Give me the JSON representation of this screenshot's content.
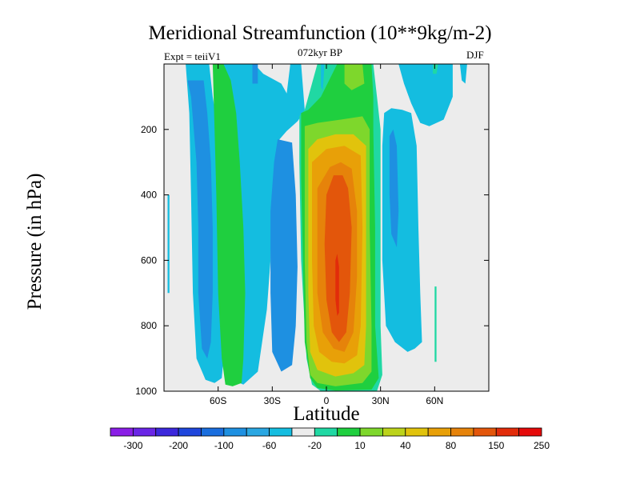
{
  "chart_data": {
    "type": "heatmap",
    "title": "Meridional Streamfunction (10**9kg/m-2)",
    "subtitle_left": "Expt = teiiV1",
    "subtitle_center": "072kyr BP",
    "subtitle_right": "DJF",
    "xlabel": "Latitude",
    "ylabel": "Pressure (in hPa)",
    "xlim": [
      -90,
      90
    ],
    "ylim": [
      1000,
      0
    ],
    "x_ticks": [
      {
        "value": -60,
        "label": "60S"
      },
      {
        "value": -30,
        "label": "30S"
      },
      {
        "value": 0,
        "label": "0"
      },
      {
        "value": 30,
        "label": "30N"
      },
      {
        "value": 60,
        "label": "60N"
      }
    ],
    "y_ticks": [
      {
        "value": 200,
        "label": "200"
      },
      {
        "value": 400,
        "label": "400"
      },
      {
        "value": 600,
        "label": "600"
      },
      {
        "value": 800,
        "label": "800"
      },
      {
        "value": 1000,
        "label": "1000"
      }
    ],
    "colorbar_labels": [
      "-300",
      "-200",
      "-100",
      "-60",
      "-20",
      "10",
      "40",
      "80",
      "150",
      "250"
    ],
    "colorbar_colors": [
      "#8a1ee6",
      "#6a25e6",
      "#3c28dc",
      "#1f46dc",
      "#1a6ede",
      "#1e90e1",
      "#2aa7e2",
      "#14bde0",
      "#ececec",
      "#20d8a3",
      "#1fcf3f",
      "#7ed72c",
      "#bcd31b",
      "#e1c30c",
      "#e8a008",
      "#e6830a",
      "#e3560b",
      "#e22c0a",
      "#e50a0a"
    ],
    "background_color": "#ececec",
    "regions": [
      {
        "level": -20,
        "color": "#14bde0",
        "shape": "band",
        "pts": [
          [
            -78,
            0
          ],
          [
            -65,
            0
          ],
          [
            -63,
            100
          ],
          [
            -60,
            200
          ],
          [
            -58,
            400
          ],
          [
            -57,
            700
          ],
          [
            -57,
            900
          ],
          [
            -58,
            960
          ],
          [
            -62,
            975
          ],
          [
            -67,
            965
          ],
          [
            -72,
            900
          ],
          [
            -74,
            700
          ],
          [
            -75,
            400
          ],
          [
            -76,
            150
          ]
        ]
      },
      {
        "level": -20,
        "color": "#14bde0",
        "shape": "band",
        "pts": [
          [
            -60,
            0
          ],
          [
            -40,
            0
          ],
          [
            -35,
            30
          ],
          [
            -25,
            60
          ],
          [
            -22,
            90
          ],
          [
            -20,
            0
          ],
          [
            -14,
            0
          ],
          [
            -12,
            140
          ],
          [
            -14,
            160
          ],
          [
            -16,
            175
          ],
          [
            -22,
            205
          ],
          [
            -26,
            230
          ],
          [
            -28,
            280
          ],
          [
            -30,
            400
          ],
          [
            -31,
            600
          ],
          [
            -33,
            750
          ],
          [
            -38,
            940
          ],
          [
            -46,
            980
          ],
          [
            -50,
            970
          ],
          [
            -53,
            900
          ],
          [
            -55,
            700
          ],
          [
            -56,
            400
          ],
          [
            -58,
            200
          ]
        ]
      },
      {
        "level": -60,
        "color": "#1e90e1",
        "shape": "band",
        "pts": [
          [
            -77,
            50
          ],
          [
            -75,
            100
          ],
          [
            -72,
            300
          ],
          [
            -71,
            500
          ],
          [
            -71,
            700
          ],
          [
            -69,
            870
          ],
          [
            -66,
            900
          ],
          [
            -64,
            850
          ],
          [
            -63,
            700
          ],
          [
            -63,
            500
          ],
          [
            -64,
            300
          ],
          [
            -66,
            150
          ],
          [
            -68,
            50
          ]
        ]
      },
      {
        "level": -60,
        "color": "#1e90e1",
        "shape": "band",
        "pts": [
          [
            -57,
            150
          ],
          [
            -50,
            150
          ],
          [
            -49,
            400
          ],
          [
            -50,
            700
          ],
          [
            -52,
            760
          ],
          [
            -55,
            700
          ],
          [
            -56,
            400
          ]
        ]
      },
      {
        "level": -60,
        "color": "#1e90e1",
        "shape": "band",
        "pts": [
          [
            -41,
            0
          ],
          [
            -38,
            0
          ],
          [
            -38,
            60
          ],
          [
            -41,
            60
          ]
        ]
      },
      {
        "level": -60,
        "color": "#1e90e1",
        "shape": "band",
        "pts": [
          [
            -27,
            230
          ],
          [
            -19,
            240
          ],
          [
            -17,
            400
          ],
          [
            -16,
            620
          ],
          [
            -17,
            800
          ],
          [
            -19,
            920
          ],
          [
            -25,
            940
          ],
          [
            -30,
            880
          ],
          [
            -31,
            700
          ],
          [
            -31,
            450
          ],
          [
            -29,
            300
          ]
        ]
      },
      {
        "level": 10,
        "color": "#20d8a3",
        "shape": "band",
        "pts": [
          [
            -15,
            160
          ],
          [
            -12,
            140
          ],
          [
            -5,
            0
          ],
          [
            26,
            0
          ],
          [
            28,
            100
          ],
          [
            30,
            200
          ],
          [
            30,
            500
          ],
          [
            30,
            800
          ],
          [
            31,
            950
          ],
          [
            28,
            1000
          ],
          [
            5,
            1000
          ],
          [
            -3,
            1000
          ],
          [
            -8,
            980
          ],
          [
            -11,
            900
          ],
          [
            -14,
            600
          ],
          [
            -15,
            300
          ]
        ]
      },
      {
        "level": 40,
        "color": "#1fcf3f",
        "shape": "band",
        "pts": [
          [
            -14,
            150
          ],
          [
            -10,
            140
          ],
          [
            -3,
            100
          ],
          [
            6,
            0
          ],
          [
            25,
            0
          ],
          [
            26,
            100
          ],
          [
            26,
            200
          ],
          [
            27,
            500
          ],
          [
            27,
            800
          ],
          [
            29,
            960
          ],
          [
            25,
            995
          ],
          [
            5,
            998
          ],
          [
            -5,
            990
          ],
          [
            -9,
            960
          ],
          [
            -12,
            850
          ],
          [
            -13,
            600
          ],
          [
            -14,
            350
          ]
        ]
      },
      {
        "level": 40,
        "color": "#1fcf3f",
        "shape": "band",
        "pts": [
          [
            -63,
            0
          ],
          [
            -57,
            0
          ],
          [
            -53,
            50
          ],
          [
            -50,
            150
          ],
          [
            -48,
            300
          ],
          [
            -46,
            500
          ],
          [
            -45,
            700
          ],
          [
            -46,
            900
          ],
          [
            -47,
            975
          ],
          [
            -52,
            985
          ],
          [
            -56,
            980
          ],
          [
            -58,
            900
          ],
          [
            -60,
            700
          ],
          [
            -61,
            400
          ],
          [
            -62,
            200
          ]
        ]
      },
      {
        "level": 80,
        "color": "#7ed72c",
        "shape": "band",
        "pts": [
          [
            -12,
            190
          ],
          [
            -5,
            180
          ],
          [
            8,
            170
          ],
          [
            20,
            160
          ],
          [
            24,
            200
          ],
          [
            24,
            500
          ],
          [
            25,
            800
          ],
          [
            25,
            940
          ],
          [
            20,
            975
          ],
          [
            5,
            985
          ],
          [
            -5,
            975
          ],
          [
            -9,
            950
          ],
          [
            -11,
            850
          ],
          [
            -12,
            600
          ],
          [
            -12,
            350
          ]
        ]
      },
      {
        "level": 80,
        "color": "#7ed72c",
        "shape": "band",
        "pts": [
          [
            10,
            0
          ],
          [
            20,
            0
          ],
          [
            21,
            60
          ],
          [
            14,
            80
          ],
          [
            10,
            60
          ]
        ]
      },
      {
        "level": 150,
        "color": "#e1c30c",
        "shape": "band",
        "pts": [
          [
            -10,
            260
          ],
          [
            -5,
            230
          ],
          [
            5,
            215
          ],
          [
            15,
            215
          ],
          [
            22,
            250
          ],
          [
            22,
            500
          ],
          [
            22,
            800
          ],
          [
            21,
            920
          ],
          [
            15,
            945
          ],
          [
            5,
            955
          ],
          [
            -5,
            935
          ],
          [
            -9,
            880
          ],
          [
            -10,
            700
          ],
          [
            -10,
            450
          ]
        ]
      },
      {
        "level": 150,
        "color": "#e8a008",
        "shape": "band",
        "pts": [
          [
            -8,
            300
          ],
          [
            0,
            260
          ],
          [
            10,
            250
          ],
          [
            19,
            280
          ],
          [
            20,
            500
          ],
          [
            19,
            800
          ],
          [
            17,
            890
          ],
          [
            10,
            915
          ],
          [
            3,
            910
          ],
          [
            -4,
            880
          ],
          [
            -7,
            800
          ],
          [
            -8,
            600
          ]
        ]
      },
      {
        "level": 150,
        "color": "#e6830a",
        "shape": "band",
        "pts": [
          [
            -5,
            380
          ],
          [
            2,
            315
          ],
          [
            8,
            300
          ],
          [
            14,
            320
          ],
          [
            17,
            450
          ],
          [
            17,
            650
          ],
          [
            15,
            820
          ],
          [
            10,
            880
          ],
          [
            4,
            870
          ],
          [
            -2,
            820
          ],
          [
            -5,
            700
          ],
          [
            -5,
            550
          ]
        ]
      },
      {
        "level": 250,
        "color": "#e3560b",
        "shape": "band",
        "pts": [
          [
            0,
            400
          ],
          [
            4,
            340
          ],
          [
            9,
            340
          ],
          [
            12,
            380
          ],
          [
            14,
            500
          ],
          [
            13,
            700
          ],
          [
            11,
            820
          ],
          [
            7,
            850
          ],
          [
            3,
            820
          ],
          [
            0,
            720
          ],
          [
            -1,
            550
          ]
        ]
      },
      {
        "level": 250,
        "color": "#e22c0a",
        "shape": "band",
        "pts": [
          [
            5,
            600
          ],
          [
            6,
            580
          ],
          [
            7,
            620
          ],
          [
            7,
            760
          ],
          [
            6,
            770
          ],
          [
            5,
            720
          ]
        ]
      },
      {
        "level": -20,
        "color": "#14bde0",
        "shape": "band",
        "pts": [
          [
            32,
            150
          ],
          [
            36,
            135
          ],
          [
            42,
            140
          ],
          [
            47,
            150
          ],
          [
            50,
            250
          ],
          [
            51,
            500
          ],
          [
            52,
            700
          ],
          [
            53,
            850
          ],
          [
            49,
            870
          ],
          [
            45,
            880
          ],
          [
            38,
            850
          ],
          [
            33,
            800
          ],
          [
            31,
            600
          ],
          [
            31,
            400
          ],
          [
            31,
            250
          ]
        ]
      },
      {
        "level": -60,
        "color": "#1e90e1",
        "shape": "band",
        "pts": [
          [
            35,
            220
          ],
          [
            37,
            200
          ],
          [
            39,
            250
          ],
          [
            40,
            450
          ],
          [
            39,
            560
          ],
          [
            36,
            520
          ],
          [
            35,
            400
          ]
        ]
      },
      {
        "level": -20,
        "color": "#14bde0",
        "shape": "band",
        "pts": [
          [
            40,
            0
          ],
          [
            70,
            0
          ],
          [
            70,
            100
          ],
          [
            65,
            170
          ],
          [
            57,
            190
          ],
          [
            52,
            180
          ],
          [
            47,
            120
          ],
          [
            43,
            60
          ]
        ]
      },
      {
        "level": -20,
        "color": "#14bde0",
        "shape": "band",
        "pts": [
          [
            74,
            0
          ],
          [
            78,
            0
          ],
          [
            77,
            60
          ],
          [
            75,
            50
          ]
        ]
      },
      {
        "level": -20,
        "color": "#14bde0",
        "shape": "band",
        "pts": [
          [
            -3,
            0
          ],
          [
            -1,
            0
          ],
          [
            -2,
            80
          ],
          [
            -3,
            70
          ]
        ]
      },
      {
        "level": -20,
        "color": "#14bde0",
        "shape": "band",
        "pts": [
          [
            -88,
            400
          ],
          [
            -87,
            400
          ],
          [
            -87,
            700
          ],
          [
            -88,
            700
          ]
        ]
      },
      {
        "level": 10,
        "color": "#20d8a3",
        "shape": "band",
        "pts": [
          [
            60,
            680
          ],
          [
            61,
            680
          ],
          [
            61,
            910
          ],
          [
            60,
            910
          ]
        ]
      },
      {
        "level": 10,
        "color": "#20d8a3",
        "shape": "band",
        "pts": [
          [
            59,
            0
          ],
          [
            62,
            0
          ],
          [
            61,
            30
          ],
          [
            59,
            30
          ]
        ]
      }
    ]
  }
}
